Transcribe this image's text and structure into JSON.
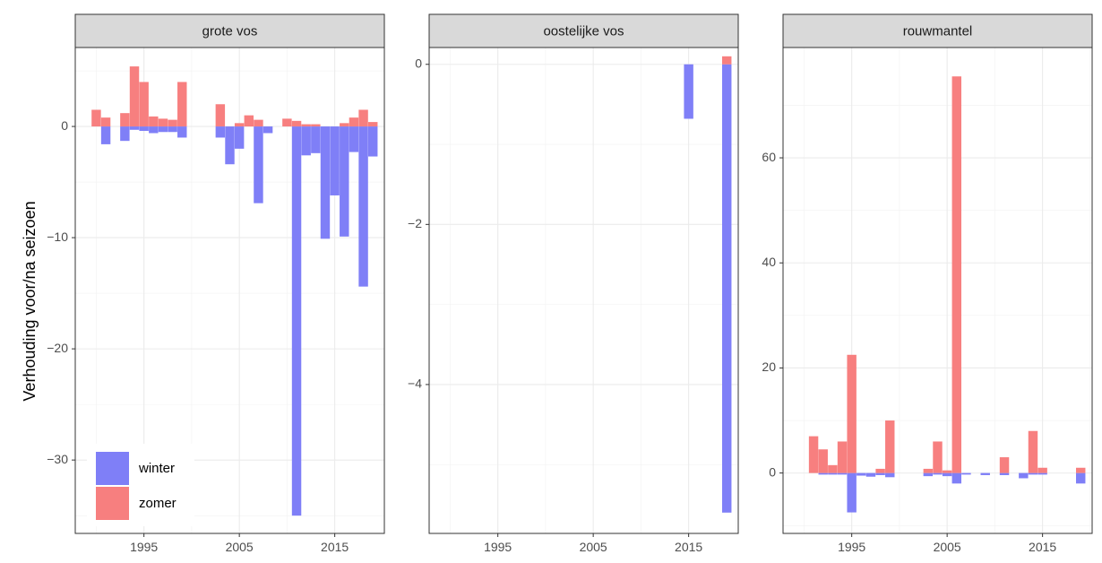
{
  "chart_data": {
    "type": "bar",
    "ylabel": "Verhouding voor/na seizoen",
    "xlabel": "",
    "colors": {
      "winter": "#7f7ff7",
      "zomer": "#f77f7f"
    },
    "legend": {
      "position": "bottom-left (inside first panel)",
      "entries": [
        "winter",
        "zomer"
      ]
    },
    "grid": true,
    "panels": [
      {
        "title": "grote vos",
        "xlim": [
          1987.8,
          2020.2
        ],
        "ylim": [
          -36.6,
          7.1
        ],
        "x_ticks": [
          1995,
          2005,
          2015
        ],
        "y_ticks": [
          0,
          -10,
          -20,
          -30
        ],
        "series": [
          {
            "name": "winter",
            "x": [
              1991,
              1993,
              1994,
              1995,
              1996,
              1997,
              1998,
              1999,
              2003,
              2004,
              2005,
              2007,
              2008,
              2011,
              2012,
              2013,
              2014,
              2015,
              2016,
              2017,
              2018,
              2019
            ],
            "values": [
              -1.6,
              -1.3,
              -0.3,
              -0.4,
              -0.6,
              -0.5,
              -0.5,
              -1.0,
              -1.0,
              -3.4,
              -2.0,
              -6.9,
              -0.6,
              -35.0,
              -2.6,
              -2.4,
              -10.1,
              -6.2,
              -9.9,
              -2.3,
              -14.4,
              -2.7
            ]
          },
          {
            "name": "zomer",
            "x": [
              1990,
              1991,
              1993,
              1994,
              1995,
              1996,
              1997,
              1998,
              1999,
              2003,
              2005,
              2006,
              2007,
              2010,
              2011,
              2012,
              2013,
              2016,
              2017,
              2018,
              2019
            ],
            "values": [
              1.5,
              0.8,
              1.2,
              5.4,
              4.0,
              0.9,
              0.7,
              0.6,
              4.0,
              2.0,
              0.3,
              1.0,
              0.6,
              0.7,
              0.5,
              0.2,
              0.2,
              0.3,
              0.8,
              1.5,
              0.4
            ]
          }
        ]
      },
      {
        "title": "oostelijke vos",
        "xlim": [
          1987.8,
          2020.2
        ],
        "ylim": [
          -5.86,
          0.21
        ],
        "x_ticks": [
          1995,
          2005,
          2015
        ],
        "y_ticks": [
          0,
          -2,
          -4
        ],
        "series": [
          {
            "name": "winter",
            "x": [
              2015,
              2019
            ],
            "values": [
              -0.68,
              -5.6
            ]
          },
          {
            "name": "zomer",
            "x": [
              2019
            ],
            "values": [
              0.1
            ]
          }
        ]
      },
      {
        "title": "rouwmantel",
        "xlim": [
          1987.8,
          2020.2
        ],
        "ylim": [
          -11.5,
          81.0
        ],
        "x_ticks": [
          1995,
          2005,
          2015
        ],
        "y_ticks": [
          0,
          20,
          40,
          60
        ],
        "series": [
          {
            "name": "winter",
            "x": [
              1992,
              1993,
              1994,
              1995,
              1996,
              1997,
              1998,
              1999,
              2003,
              2004,
              2005,
              2006,
              2007,
              2009,
              2011,
              2013,
              2014,
              2015,
              2019
            ],
            "values": [
              -0.3,
              -0.3,
              -0.3,
              -7.5,
              -0.5,
              -0.7,
              -0.4,
              -0.8,
              -0.6,
              -0.3,
              -0.6,
              -2.0,
              -0.3,
              -0.4,
              -0.4,
              -1.0,
              -0.3,
              -0.3,
              -2.0
            ]
          },
          {
            "name": "zomer",
            "x": [
              1991,
              1992,
              1993,
              1994,
              1995,
              1998,
              1999,
              2003,
              2004,
              2005,
              2006,
              2011,
              2014,
              2015,
              2019
            ],
            "values": [
              7.0,
              4.5,
              1.5,
              6.0,
              22.5,
              0.8,
              10.0,
              0.8,
              6.0,
              0.5,
              75.5,
              3.0,
              8.0,
              1.0,
              1.0
            ]
          }
        ]
      }
    ]
  }
}
